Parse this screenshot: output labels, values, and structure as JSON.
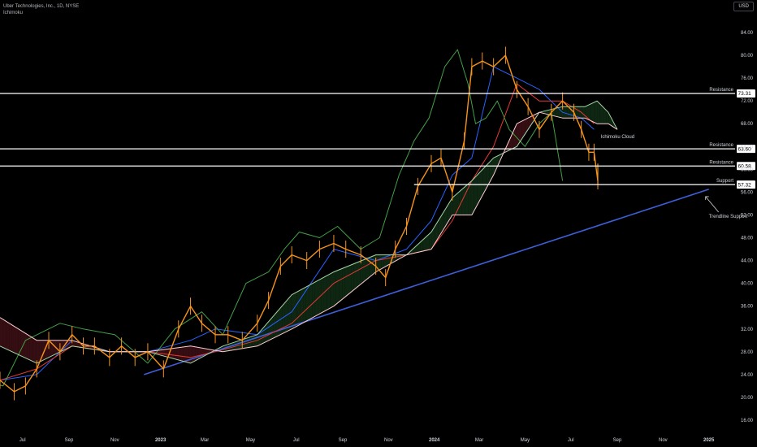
{
  "header": {
    "title": "Uber Technologies, Inc., 1D, NYSE",
    "indicator": "Ichimoku",
    "currency_button": "USD"
  },
  "colors": {
    "background": "#000000",
    "price_line": "#f7931a",
    "conversion_line": "#2962ff",
    "base_line": "#e53935",
    "lagging_span": "#43a047",
    "span_a": "#a5d6a7",
    "span_b": "#ffcdd2",
    "level_line": "#ffffff",
    "trendline": "#3e5fd8"
  },
  "chart_data": {
    "type": "line",
    "title": "",
    "xlabel": "",
    "ylabel": "",
    "ylim": [
      16,
      86
    ],
    "y_ticks": [
      "84.00",
      "80.00",
      "76.00",
      "72.00",
      "68.00",
      "64.00",
      "60.00",
      "56.00",
      "52.00",
      "48.00",
      "44.00",
      "40.00",
      "36.00",
      "32.00",
      "28.00",
      "24.00",
      "20.00",
      "16.00"
    ],
    "x_ticks": [
      {
        "label": "Jul",
        "bold": false,
        "date": "2022-07-01"
      },
      {
        "label": "Sep",
        "bold": false,
        "date": "2022-09-01"
      },
      {
        "label": "Nov",
        "bold": false,
        "date": "2022-11-01"
      },
      {
        "label": "2023",
        "bold": true,
        "date": "2023-01-01"
      },
      {
        "label": "Mar",
        "bold": false,
        "date": "2023-03-01"
      },
      {
        "label": "May",
        "bold": false,
        "date": "2023-05-01"
      },
      {
        "label": "Jul",
        "bold": false,
        "date": "2023-07-01"
      },
      {
        "label": "Sep",
        "bold": false,
        "date": "2023-09-01"
      },
      {
        "label": "Nov",
        "bold": false,
        "date": "2023-11-01"
      },
      {
        "label": "2024",
        "bold": true,
        "date": "2024-01-01"
      },
      {
        "label": "Mar",
        "bold": false,
        "date": "2024-03-01"
      },
      {
        "label": "May",
        "bold": false,
        "date": "2024-05-01"
      },
      {
        "label": "Jul",
        "bold": false,
        "date": "2024-07-01"
      },
      {
        "label": "Sep",
        "bold": false,
        "date": "2024-09-01"
      },
      {
        "label": "Nov",
        "bold": false,
        "date": "2024-11-01"
      },
      {
        "label": "2025",
        "bold": true,
        "date": "2025-01-01"
      }
    ],
    "x_range": [
      "2022-06-01",
      "2025-02-05"
    ],
    "grid": false,
    "price": {
      "name": "",
      "x": [
        "2022-06-01",
        "2022-06-20",
        "2022-07-05",
        "2022-07-20",
        "2022-08-05",
        "2022-08-20",
        "2022-09-05",
        "2022-09-20",
        "2022-10-05",
        "2022-10-25",
        "2022-11-10",
        "2022-11-28",
        "2022-12-15",
        "2023-01-05",
        "2023-01-25",
        "2023-02-10",
        "2023-02-25",
        "2023-03-15",
        "2023-04-01",
        "2023-04-20",
        "2023-05-10",
        "2023-05-25",
        "2023-06-10",
        "2023-06-25",
        "2023-07-15",
        "2023-08-01",
        "2023-08-20",
        "2023-09-05",
        "2023-09-25",
        "2023-10-15",
        "2023-10-28",
        "2023-11-10",
        "2023-11-25",
        "2023-12-10",
        "2023-12-28",
        "2024-01-10",
        "2024-01-25",
        "2024-02-10",
        "2024-02-20",
        "2024-03-05",
        "2024-03-20",
        "2024-04-05",
        "2024-04-20",
        "2024-05-05",
        "2024-05-20",
        "2024-06-05",
        "2024-06-20",
        "2024-07-05",
        "2024-07-15",
        "2024-07-25",
        "2024-08-01",
        "2024-08-06"
      ],
      "values": [
        23,
        21,
        22,
        25,
        30,
        28,
        31,
        29,
        29,
        27,
        29,
        27,
        28,
        25,
        32,
        36,
        33,
        31,
        31,
        30,
        33,
        37,
        43,
        45,
        44,
        46,
        47,
        46,
        45,
        43,
        41,
        46,
        50,
        57,
        61,
        62,
        56,
        65,
        78,
        79,
        78,
        80,
        74,
        71,
        67,
        70,
        72,
        70,
        67,
        63,
        63,
        58
      ]
    },
    "series": [
      {
        "name": "",
        "role": "conversion_line",
        "x": [
          "2022-06-01",
          "2022-07-20",
          "2022-09-05",
          "2022-10-25",
          "2022-12-15",
          "2023-02-10",
          "2023-03-15",
          "2023-05-10",
          "2023-06-25",
          "2023-08-20",
          "2023-10-15",
          "2023-11-25",
          "2023-12-28",
          "2024-01-25",
          "2024-02-20",
          "2024-03-20",
          "2024-04-20",
          "2024-05-20",
          "2024-06-20",
          "2024-07-15",
          "2024-08-01"
        ],
        "values": [
          23,
          24,
          30,
          28,
          28,
          30,
          32,
          31,
          35,
          46,
          44,
          46,
          51,
          59,
          62,
          78,
          76,
          74,
          70,
          69,
          67
        ]
      },
      {
        "name": "",
        "role": "base_line",
        "x": [
          "2022-06-01",
          "2022-07-20",
          "2022-09-05",
          "2022-10-25",
          "2022-12-15",
          "2023-02-10",
          "2023-03-15",
          "2023-05-10",
          "2023-06-25",
          "2023-08-20",
          "2023-10-15",
          "2023-11-25",
          "2023-12-28",
          "2024-01-25",
          "2024-02-20",
          "2024-03-20",
          "2024-04-20",
          "2024-05-20",
          "2024-06-20",
          "2024-07-15",
          "2024-08-01"
        ],
        "values": [
          23,
          25,
          29,
          28,
          28,
          27,
          28,
          30,
          33,
          40,
          44,
          45,
          46,
          51,
          58,
          64,
          75,
          72,
          72,
          70,
          68
        ]
      },
      {
        "name": "",
        "role": "lagging_span",
        "x": [
          "2022-05-10",
          "2022-06-05",
          "2022-07-05",
          "2022-08-20",
          "2022-09-20",
          "2022-11-01",
          "2022-12-15",
          "2023-01-20",
          "2023-02-25",
          "2023-03-25",
          "2023-04-25",
          "2023-05-25",
          "2023-06-15",
          "2023-07-05",
          "2023-08-01",
          "2023-08-25",
          "2023-09-25",
          "2023-10-20",
          "2023-11-15",
          "2023-12-05",
          "2023-12-25",
          "2024-01-15",
          "2024-02-01",
          "2024-02-15",
          "2024-02-25",
          "2024-03-10",
          "2024-03-25",
          "2024-04-10",
          "2024-05-01",
          "2024-05-20",
          "2024-06-05",
          "2024-06-20"
        ],
        "values": [
          23,
          22,
          30,
          33,
          32,
          31,
          26,
          32,
          35,
          31,
          40,
          42,
          46,
          49,
          48,
          50,
          46,
          48,
          59,
          65,
          69,
          78,
          81,
          75,
          68,
          69,
          72,
          67,
          64,
          68,
          70,
          58
        ]
      },
      {
        "name": "",
        "role": "span_a",
        "x": [
          "2022-06-01",
          "2022-07-20",
          "2022-09-05",
          "2022-10-25",
          "2022-12-15",
          "2023-02-10",
          "2023-03-25",
          "2023-05-10",
          "2023-06-25",
          "2023-08-20",
          "2023-10-15",
          "2023-11-25",
          "2023-12-28",
          "2024-01-25",
          "2024-02-20",
          "2024-03-20",
          "2024-04-20",
          "2024-05-20",
          "2024-06-20",
          "2024-07-20",
          "2024-08-05",
          "2024-08-20",
          "2024-09-01"
        ],
        "values": [
          29,
          26,
          29,
          28,
          28,
          26,
          29,
          31,
          38,
          42,
          45,
          45,
          49,
          55,
          58,
          62,
          64,
          70,
          71,
          71,
          72,
          70,
          67
        ]
      },
      {
        "name": "",
        "role": "span_b",
        "x": [
          "2022-06-01",
          "2022-07-20",
          "2022-09-05",
          "2022-10-25",
          "2022-12-15",
          "2023-02-10",
          "2023-03-25",
          "2023-05-10",
          "2023-06-25",
          "2023-08-20",
          "2023-10-15",
          "2023-11-25",
          "2023-12-28",
          "2024-01-25",
          "2024-02-20",
          "2024-03-20",
          "2024-04-20",
          "2024-05-20",
          "2024-06-20",
          "2024-07-20",
          "2024-08-05",
          "2024-08-20",
          "2024-09-01"
        ],
        "values": [
          34,
          30,
          30,
          28,
          28,
          29,
          28,
          29,
          32,
          36,
          42,
          45,
          46,
          52,
          52,
          59,
          68,
          70,
          69,
          69,
          68,
          68,
          67
        ]
      }
    ],
    "levels": [
      {
        "value": 73.31,
        "value_label": "73.31",
        "label": "Resistance"
      },
      {
        "value": 63.6,
        "value_label": "63.60",
        "label": "Resistance"
      },
      {
        "value": 60.58,
        "value_label": "60.58",
        "label": "Resistance"
      },
      {
        "value": 57.32,
        "value_label": "57.32",
        "label": "Support",
        "start_date": "2023-12-05"
      }
    ],
    "trendline": {
      "from": {
        "date": "2022-12-10",
        "value": 24
      },
      "to": {
        "date": "2025-01-01",
        "value": 56.5
      }
    },
    "annotations": [
      {
        "text": "Ichimoku Cloud",
        "date": "2024-08-10",
        "value": 65.5
      },
      {
        "text": "Trendline Support",
        "date": "2025-01-01",
        "value": 51.5,
        "arrow_to": {
          "date": "2025-01-01",
          "value": 55.5
        }
      }
    ]
  }
}
